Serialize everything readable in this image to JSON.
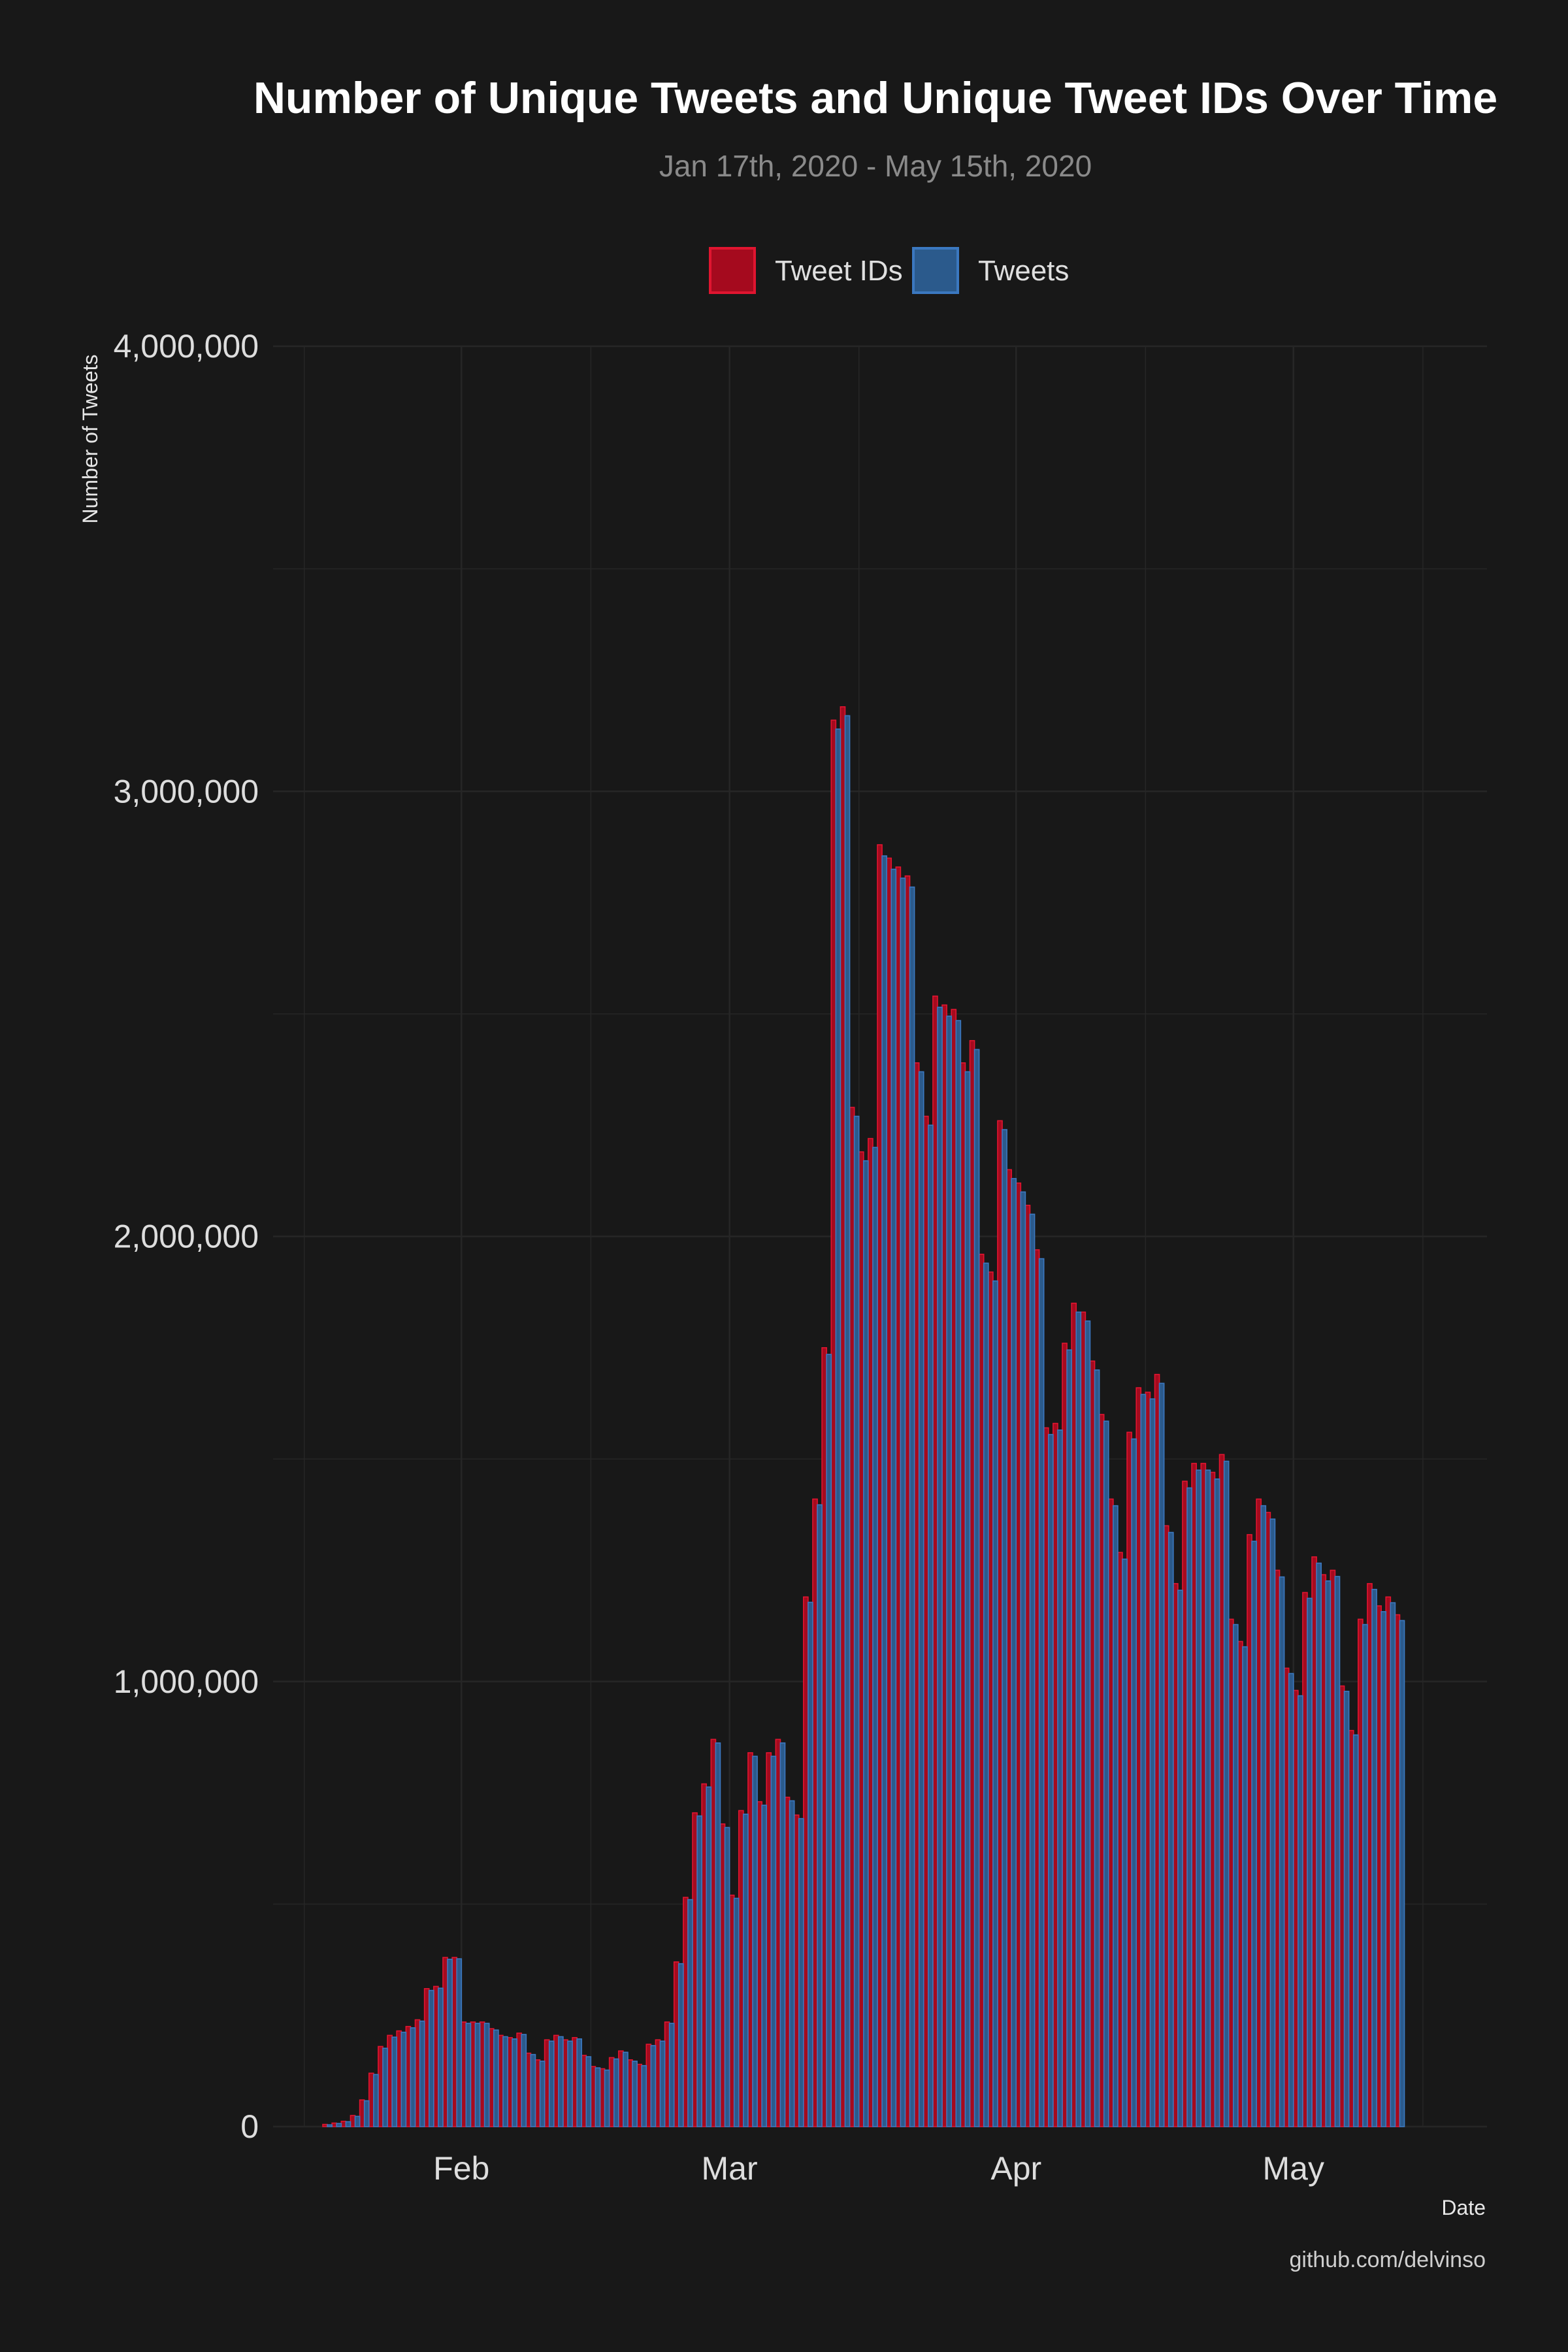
{
  "chart_data": {
    "type": "bar",
    "title": "Number of Unique Tweets and Unique Tweet IDs Over Time",
    "subtitle": "Jan 17th, 2020 - May 15th, 2020",
    "xlabel": "Date",
    "ylabel": "Number of Tweets",
    "caption": "github.com/delvinso",
    "ylim": [
      0,
      4000000
    ],
    "y_ticks": [
      {
        "value": 0,
        "label": "0"
      },
      {
        "value": 1000000,
        "label": "1,000,000"
      },
      {
        "value": 2000000,
        "label": "2,000,000"
      },
      {
        "value": 3000000,
        "label": "3,000,000"
      },
      {
        "value": 4000000,
        "label": "4,000,000"
      }
    ],
    "x_ticks": [
      {
        "date": "2020-02-01",
        "label": "Feb"
      },
      {
        "date": "2020-03-01",
        "label": "Mar"
      },
      {
        "date": "2020-04-01",
        "label": "Apr"
      },
      {
        "date": "2020-05-01",
        "label": "May"
      }
    ],
    "x_start": "2020-01-17",
    "x_end": "2020-05-15",
    "grid": true,
    "legend_position": "top",
    "colors": {
      "Tweet IDs": "#a50a1e",
      "Tweets": "#2b5a8c"
    },
    "border_colors": {
      "Tweet IDs": "#e01530",
      "Tweets": "#3b78c0"
    },
    "series": [
      {
        "name": "Tweet IDs",
        "values": [
          5000,
          8000,
          12000,
          25000,
          60000,
          120000,
          180000,
          205000,
          215000,
          225000,
          240000,
          310000,
          315000,
          380000,
          380000,
          235000,
          235000,
          235000,
          220000,
          205000,
          200000,
          210000,
          165000,
          150000,
          195000,
          205000,
          195000,
          200000,
          160000,
          135000,
          130000,
          155000,
          170000,
          150000,
          140000,
          185000,
          195000,
          235000,
          370000,
          515000,
          705000,
          770000,
          870000,
          680000,
          520000,
          710000,
          840000,
          730000,
          840000,
          870000,
          740000,
          700000,
          1190000,
          1410000,
          1750000,
          3160000,
          3190000,
          2290000,
          2190000,
          2220000,
          2880000,
          2850000,
          2830000,
          2810000,
          2390000,
          2270000,
          2540000,
          2520000,
          2510000,
          2390000,
          2440000,
          1960000,
          1920000,
          2260000,
          2150000,
          2120000,
          2070000,
          1970000,
          1570000,
          1580000,
          1760000,
          1850000,
          1830000,
          1720000,
          1600000,
          1410000,
          1290000,
          1560000,
          1660000,
          1650000,
          1690000,
          1350000,
          1220000,
          1450000,
          1490000,
          1490000,
          1470000,
          1510000,
          1140000,
          1090000,
          1330000,
          1410000,
          1380000,
          1250000,
          1030000,
          980000,
          1200000,
          1280000,
          1240000,
          1250000,
          990000,
          890000,
          1140000,
          1220000,
          1170000,
          1190000,
          1150000
        ],
        "borders": true
      },
      {
        "name": "Tweets",
        "values": [
          4000,
          7000,
          11000,
          23000,
          58000,
          117000,
          176000,
          201000,
          212000,
          222000,
          237000,
          306000,
          311000,
          376000,
          377000,
          232000,
          232000,
          232000,
          217000,
          202000,
          197000,
          207000,
          162000,
          147000,
          192000,
          202000,
          192000,
          197000,
          157000,
          132000,
          127000,
          152000,
          167000,
          147000,
          137000,
          182000,
          192000,
          232000,
          366000,
          510000,
          698000,
          763000,
          862000,
          672000,
          513000,
          702000,
          832000,
          722000,
          832000,
          862000,
          732000,
          692000,
          1178000,
          1397000,
          1735000,
          3140000,
          3170000,
          2270000,
          2170000,
          2200000,
          2855000,
          2825000,
          2805000,
          2785000,
          2370000,
          2250000,
          2515000,
          2495000,
          2485000,
          2370000,
          2420000,
          1940000,
          1900000,
          2240000,
          2130000,
          2100000,
          2050000,
          1950000,
          1555000,
          1565000,
          1745000,
          1830000,
          1810000,
          1700000,
          1585000,
          1395000,
          1275000,
          1545000,
          1645000,
          1635000,
          1670000,
          1335000,
          1205000,
          1435000,
          1475000,
          1475000,
          1455000,
          1495000,
          1128000,
          1078000,
          1315000,
          1395000,
          1365000,
          1235000,
          1018000,
          968000,
          1187000,
          1266000,
          1226000,
          1236000,
          978000,
          880000,
          1128000,
          1207000,
          1157000,
          1177000,
          1137000
        ]
      }
    ]
  }
}
